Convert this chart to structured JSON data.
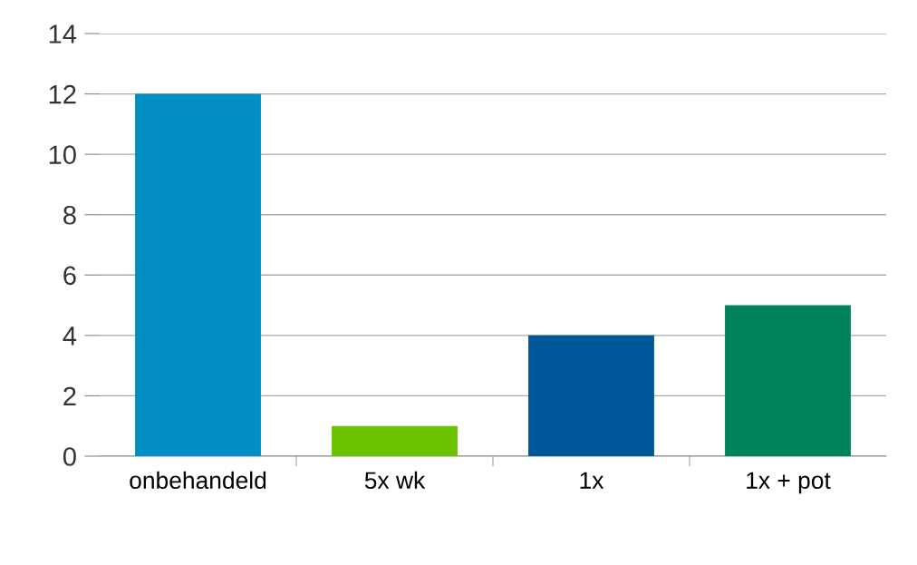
{
  "chart_data": {
    "type": "bar",
    "categories": [
      "onbehandeld",
      "5x wk",
      "1x",
      "1x + pot"
    ],
    "values": [
      12,
      1,
      4,
      5
    ],
    "colors": [
      "#008ec4",
      "#6ac200",
      "#00579a",
      "#00825a"
    ],
    "ylim": [
      0,
      14
    ],
    "yticks": [
      0,
      2,
      4,
      6,
      8,
      10,
      12,
      14
    ],
    "grid": "y",
    "legend": false
  }
}
